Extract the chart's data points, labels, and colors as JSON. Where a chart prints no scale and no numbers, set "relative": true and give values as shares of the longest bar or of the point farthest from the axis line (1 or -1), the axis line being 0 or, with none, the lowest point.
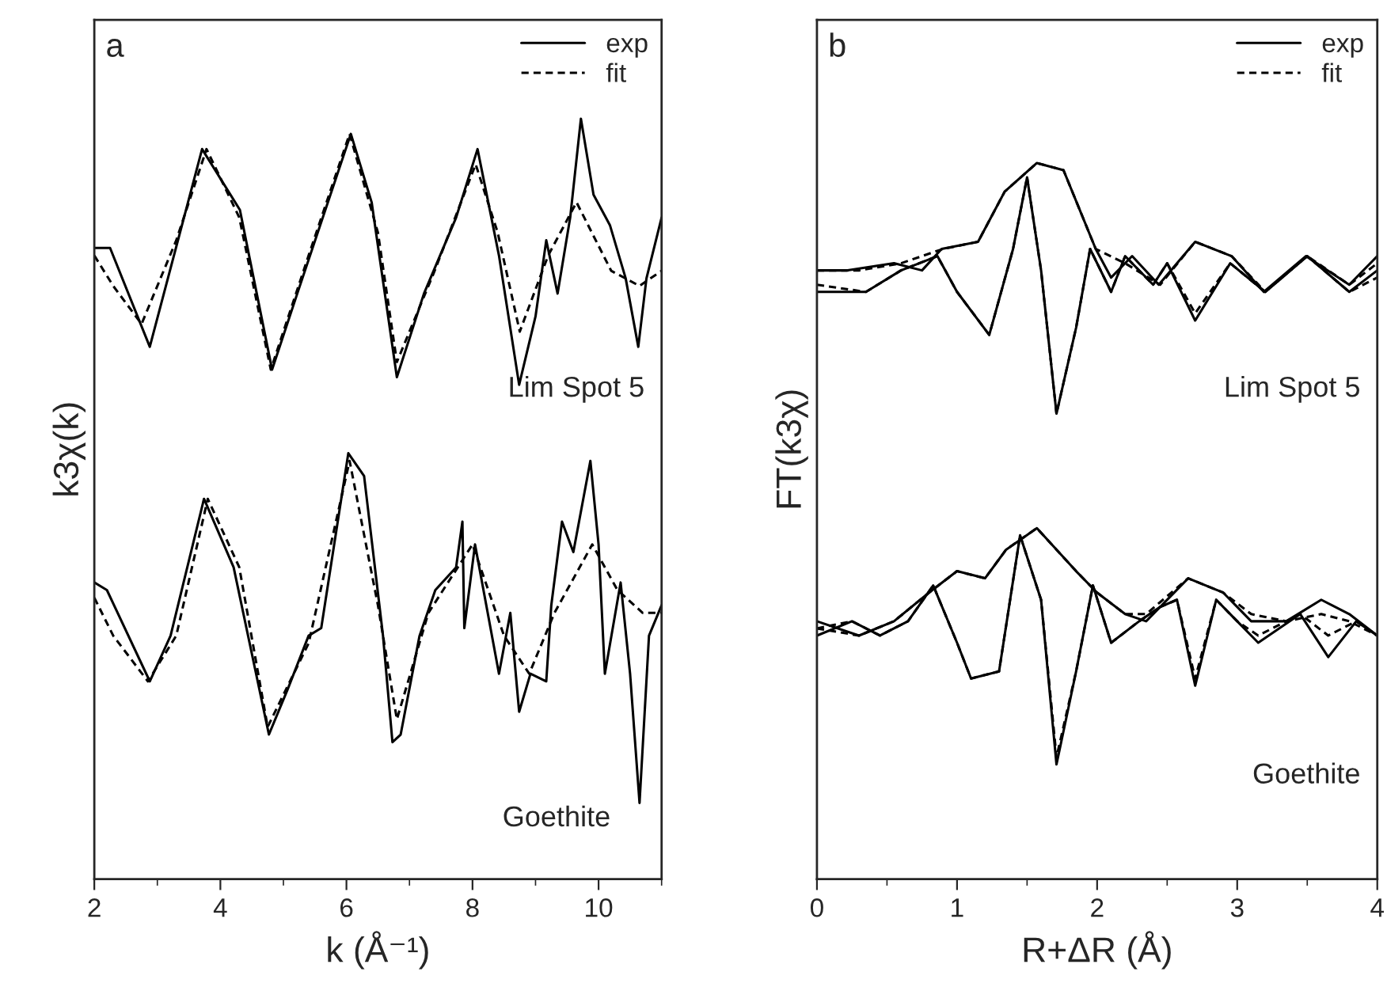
{
  "chart_data": [
    {
      "type": "line",
      "title": "a",
      "xlabel": "k (Å⁻¹)",
      "ylabel": "k3χ(k)",
      "relative": true,
      "xlim": [
        2,
        11
      ],
      "xticks": [
        2,
        4,
        6,
        8,
        10
      ],
      "legend": "top right",
      "tick_labels": "x",
      "annotations": [
        "Lim Spot 5",
        "Goethite"
      ],
      "series": [
        {
          "name": "exp",
          "color": "#000000",
          "line_style": "solid",
          "x": [
            2.0,
            2.25,
            2.88,
            3.71,
            4.31,
            4.82,
            5.22,
            6.07,
            6.4,
            6.8,
            7.23,
            7.74,
            8.08,
            8.42,
            8.74,
            9.0,
            9.17,
            9.35,
            9.55,
            9.72,
            9.92,
            10.18,
            10.43,
            10.63,
            10.76,
            11.0
          ],
          "values": [
            0.83,
            0.83,
            0.7,
            0.96,
            0.88,
            0.67,
            0.77,
            0.98,
            0.89,
            0.66,
            0.77,
            0.87,
            0.96,
            0.82,
            0.65,
            0.74,
            0.84,
            0.77,
            0.87,
            1.0,
            0.9,
            0.86,
            0.79,
            0.7,
            0.79,
            0.87
          ]
        },
        {
          "name": "fit",
          "color": "#000000",
          "line_style": "dashed",
          "x": [
            2.0,
            2.3,
            2.75,
            3.3,
            3.78,
            4.3,
            4.8,
            5.4,
            6.05,
            6.5,
            6.8,
            7.4,
            8.05,
            8.4,
            8.75,
            9.2,
            9.65,
            10.2,
            10.65,
            11.0
          ],
          "values": [
            0.82,
            0.78,
            0.73,
            0.84,
            0.96,
            0.87,
            0.67,
            0.82,
            0.98,
            0.85,
            0.68,
            0.8,
            0.94,
            0.85,
            0.72,
            0.82,
            0.89,
            0.8,
            0.78,
            0.8
          ]
        },
        {
          "color": "#000000",
          "line_style": "solid",
          "x": [
            2.0,
            2.2,
            2.88,
            3.21,
            3.74,
            4.21,
            4.77,
            5.07,
            5.4,
            5.6,
            6.03,
            6.28,
            6.58,
            6.73,
            6.86,
            7.16,
            7.41,
            7.74,
            7.84,
            7.87,
            8.04,
            8.42,
            8.6,
            8.74,
            8.92,
            9.17,
            9.25,
            9.42,
            9.6,
            9.87,
            10.0,
            10.1,
            10.35,
            10.5,
            10.65,
            10.8,
            11.0
          ],
          "values": [
            0.39,
            0.38,
            0.26,
            0.32,
            0.5,
            0.41,
            0.19,
            0.25,
            0.32,
            0.33,
            0.56,
            0.53,
            0.32,
            0.18,
            0.19,
            0.32,
            0.38,
            0.41,
            0.47,
            0.33,
            0.44,
            0.27,
            0.35,
            0.22,
            0.27,
            0.26,
            0.36,
            0.47,
            0.43,
            0.55,
            0.44,
            0.27,
            0.39,
            0.27,
            0.1,
            0.32,
            0.36
          ]
        },
        {
          "color": "#000000",
          "line_style": "dashed",
          "x": [
            2.0,
            2.3,
            2.85,
            3.3,
            3.8,
            4.3,
            4.75,
            5.4,
            6.05,
            6.5,
            6.8,
            7.3,
            8.0,
            8.5,
            8.9,
            9.3,
            9.9,
            10.3,
            10.7,
            11.0
          ],
          "values": [
            0.37,
            0.32,
            0.26,
            0.32,
            0.5,
            0.41,
            0.2,
            0.31,
            0.55,
            0.36,
            0.21,
            0.35,
            0.44,
            0.32,
            0.27,
            0.35,
            0.44,
            0.38,
            0.35,
            0.35
          ]
        }
      ]
    },
    {
      "type": "line",
      "title": "b",
      "xlabel": "R+ΔR (Å)",
      "ylabel": "FT(k3χ)",
      "relative": true,
      "xlim": [
        0,
        4
      ],
      "xticks": [
        0,
        1,
        2,
        3,
        4
      ],
      "legend": "top right",
      "tick_labels": "x",
      "annotations": [
        "Lim Spot 5",
        "Goethite"
      ],
      "series": [
        {
          "name": "exp",
          "color": "#000000",
          "line_style": "solid",
          "x": [
            0,
            0.21,
            0.55,
            0.75,
            0.89,
            1.15,
            1.34,
            1.57,
            1.76,
            1.99,
            2.1,
            2.25,
            2.44,
            2.7,
            2.96,
            3.19,
            3.49,
            3.8,
            4.0
          ],
          "values": [
            0.85,
            0.85,
            0.86,
            0.85,
            0.88,
            0.89,
            0.96,
            1.0,
            0.99,
            0.88,
            0.84,
            0.87,
            0.83,
            0.89,
            0.87,
            0.82,
            0.87,
            0.83,
            0.87
          ]
        },
        {
          "name": "fit",
          "color": "#000000",
          "line_style": "dashed",
          "x": [
            0,
            0.3,
            0.6,
            0.9,
            1.15,
            1.34,
            1.57,
            1.76,
            1.99,
            2.2,
            2.45,
            2.7,
            2.96,
            3.2,
            3.5,
            3.8,
            4.0
          ],
          "values": [
            0.85,
            0.85,
            0.86,
            0.88,
            0.89,
            0.96,
            1.0,
            0.99,
            0.88,
            0.86,
            0.83,
            0.89,
            0.87,
            0.82,
            0.87,
            0.83,
            0.86
          ]
        },
        {
          "color": "#000000",
          "line_style": "solid",
          "x": [
            0,
            0.35,
            0.6,
            0.86,
            1.0,
            1.23,
            1.4,
            1.5,
            1.6,
            1.71,
            1.85,
            1.95,
            2.1,
            2.2,
            2.4,
            2.5,
            2.7,
            2.95,
            3.2,
            3.5,
            3.8,
            4.0
          ],
          "values": [
            0.82,
            0.82,
            0.85,
            0.87,
            0.82,
            0.76,
            0.88,
            0.98,
            0.85,
            0.65,
            0.77,
            0.88,
            0.82,
            0.87,
            0.83,
            0.86,
            0.78,
            0.86,
            0.82,
            0.87,
            0.82,
            0.85
          ]
        },
        {
          "color": "#000000",
          "line_style": "dashed",
          "x": [
            0,
            0.35,
            0.6,
            0.86,
            1.0,
            1.23,
            1.4,
            1.5,
            1.6,
            1.71,
            1.85,
            1.95,
            2.1,
            2.2,
            2.4,
            2.5,
            2.7,
            2.95,
            3.2,
            3.5,
            3.8,
            4.0
          ],
          "values": [
            0.83,
            0.82,
            0.85,
            0.87,
            0.82,
            0.76,
            0.88,
            0.98,
            0.85,
            0.65,
            0.77,
            0.88,
            0.82,
            0.87,
            0.83,
            0.86,
            0.79,
            0.86,
            0.82,
            0.87,
            0.82,
            0.84
          ]
        },
        {
          "color": "#000000",
          "line_style": "solid",
          "x": [
            0,
            0.3,
            0.55,
            0.8,
            1.0,
            1.2,
            1.35,
            1.57,
            1.85,
            2.0,
            2.2,
            2.35,
            2.65,
            2.9,
            3.1,
            3.35,
            3.6,
            3.8,
            4.0
          ],
          "values": [
            0.36,
            0.34,
            0.36,
            0.4,
            0.43,
            0.42,
            0.46,
            0.49,
            0.43,
            0.4,
            0.37,
            0.36,
            0.42,
            0.4,
            0.36,
            0.36,
            0.39,
            0.37,
            0.34
          ]
        },
        {
          "color": "#000000",
          "line_style": "dashed",
          "x": [
            0,
            0.3,
            0.55,
            0.8,
            1.0,
            1.2,
            1.35,
            1.57,
            1.85,
            2.0,
            2.2,
            2.35,
            2.65,
            2.9,
            3.1,
            3.35,
            3.6,
            3.8,
            4.0
          ],
          "values": [
            0.35,
            0.34,
            0.36,
            0.4,
            0.43,
            0.42,
            0.46,
            0.49,
            0.43,
            0.4,
            0.37,
            0.37,
            0.42,
            0.4,
            0.37,
            0.36,
            0.37,
            0.36,
            0.34
          ]
        },
        {
          "color": "#000000",
          "line_style": "solid",
          "x": [
            0,
            0.25,
            0.45,
            0.65,
            0.83,
            1.0,
            1.1,
            1.3,
            1.45,
            1.6,
            1.71,
            1.85,
            1.97,
            2.1,
            2.3,
            2.45,
            2.57,
            2.7,
            2.85,
            3.0,
            3.15,
            3.45,
            3.65,
            3.85,
            4.0
          ],
          "values": [
            0.34,
            0.36,
            0.34,
            0.36,
            0.41,
            0.33,
            0.28,
            0.29,
            0.48,
            0.39,
            0.16,
            0.29,
            0.41,
            0.33,
            0.36,
            0.38,
            0.39,
            0.27,
            0.39,
            0.36,
            0.33,
            0.37,
            0.31,
            0.36,
            0.34
          ]
        },
        {
          "color": "#000000",
          "line_style": "dashed",
          "x": [
            0,
            0.25,
            0.45,
            0.65,
            0.83,
            1.0,
            1.1,
            1.3,
            1.45,
            1.6,
            1.71,
            1.85,
            1.97,
            2.1,
            2.3,
            2.45,
            2.57,
            2.7,
            2.85,
            3.0,
            3.15,
            3.45,
            3.65,
            3.85,
            4.0
          ],
          "values": [
            0.35,
            0.36,
            0.34,
            0.36,
            0.41,
            0.33,
            0.28,
            0.29,
            0.48,
            0.39,
            0.17,
            0.29,
            0.41,
            0.33,
            0.36,
            0.38,
            0.39,
            0.28,
            0.39,
            0.36,
            0.34,
            0.37,
            0.34,
            0.36,
            0.34
          ]
        }
      ]
    }
  ]
}
